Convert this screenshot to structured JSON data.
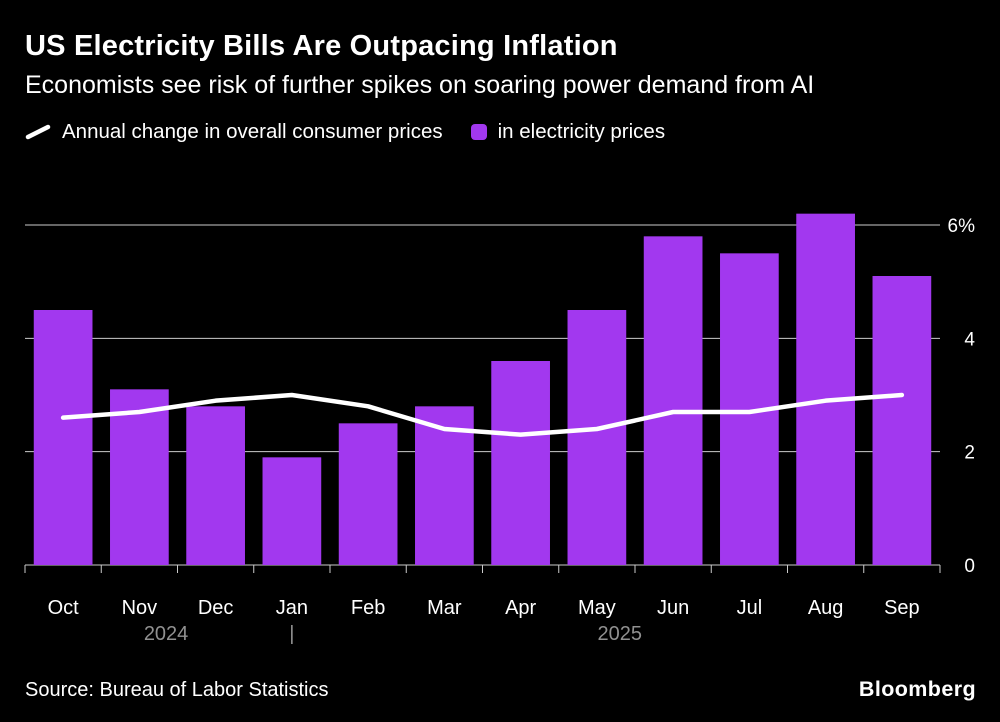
{
  "header": {
    "title": "US Electricity Bills Are Outpacing Inflation",
    "subtitle": "Economists see risk of further spikes on soaring power demand from AI"
  },
  "chart_data": {
    "type": "bar",
    "title": "US Electricity Bills Are Outpacing Inflation",
    "categories": [
      "Oct",
      "Nov",
      "Dec",
      "Jan",
      "Feb",
      "Mar",
      "Apr",
      "May",
      "Jun",
      "Jul",
      "Aug",
      "Sep"
    ],
    "series": [
      {
        "name": "Annual change in overall consumer prices",
        "type": "line",
        "color": "#ffffff",
        "values": [
          2.6,
          2.7,
          2.9,
          3.0,
          2.8,
          2.4,
          2.3,
          2.4,
          2.7,
          2.7,
          2.9,
          3.0
        ]
      },
      {
        "name": "in electricity prices",
        "type": "bar",
        "color": "#a238ef",
        "values": [
          4.5,
          3.1,
          2.8,
          1.9,
          2.5,
          2.8,
          3.6,
          4.5,
          5.8,
          5.5,
          6.2,
          5.1
        ]
      }
    ],
    "unit": "%",
    "ylim": [
      0,
      6.4
    ],
    "yticks": [
      0,
      2,
      4,
      6
    ],
    "ytick_labels": [
      "0",
      "2",
      "4",
      "6%"
    ],
    "grid": true,
    "legend_position": "top",
    "x_annotations": [
      {
        "label": "2024",
        "slot": 1.35
      },
      {
        "label": "|",
        "slot": 3
      },
      {
        "label": "2025",
        "slot": 7.3
      }
    ]
  },
  "footer": {
    "source": "Source: Bureau of Labor Statistics",
    "brand": "Bloomberg"
  },
  "colors": {
    "background": "#000000",
    "bar": "#a238ef",
    "line": "#ffffff",
    "grid": "#cccccc",
    "text": "#ffffff",
    "muted_text": "#909090"
  }
}
